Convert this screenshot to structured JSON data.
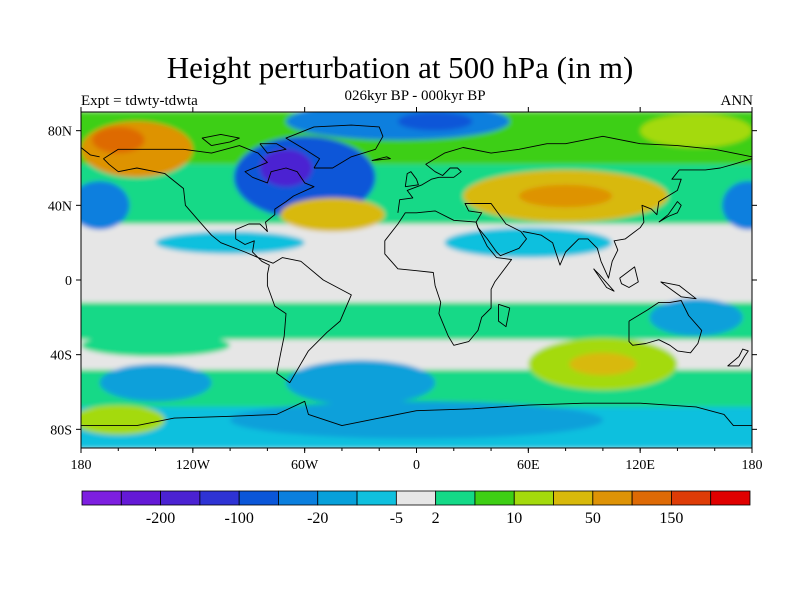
{
  "title": "Height perturbation at 500 hPa (in m)",
  "subtitle": "026kyr BP - 000kyr BP",
  "left_label": "Expt = tdwty-tdwta",
  "right_label": "ANN",
  "map": {
    "lon_range": [
      -180,
      180
    ],
    "lat_range": [
      -90,
      90
    ],
    "lon_ticks": [
      {
        "value": -180,
        "label": "180"
      },
      {
        "value": -120,
        "label": "120W"
      },
      {
        "value": -60,
        "label": "60W"
      },
      {
        "value": 0,
        "label": "0"
      },
      {
        "value": 60,
        "label": "60E"
      },
      {
        "value": 120,
        "label": "120E"
      },
      {
        "value": 180,
        "label": "180"
      }
    ],
    "lat_ticks": [
      {
        "value": 80,
        "label": "80N"
      },
      {
        "value": 40,
        "label": "40N"
      },
      {
        "value": 0,
        "label": "0"
      },
      {
        "value": -40,
        "label": "40S"
      },
      {
        "value": -80,
        "label": "80S"
      }
    ]
  },
  "colorbar": {
    "colors": [
      "#7d1fe0",
      "#6419d6",
      "#4b22d2",
      "#2e33d4",
      "#0a56d8",
      "#0a7fde",
      "#07a0da",
      "#0fc0de",
      "#e6e6e6",
      "#14d987",
      "#3ecf14",
      "#a4da0c",
      "#d8b90a",
      "#de9306",
      "#de6a05",
      "#de3c07",
      "#e00000"
    ],
    "labels": [
      {
        "after_box": 2,
        "text": "-200"
      },
      {
        "after_box": 4,
        "text": "-100"
      },
      {
        "after_box": 6,
        "text": "-20"
      },
      {
        "after_box": 8,
        "text": "-5"
      },
      {
        "after_box": 9,
        "text": "2"
      },
      {
        "after_box": 11,
        "text": "10"
      },
      {
        "after_box": 13,
        "text": "50"
      },
      {
        "after_box": 15,
        "text": "150"
      }
    ]
  },
  "field_blobs": [
    {
      "lon": -60,
      "lat": 55,
      "rx": 38,
      "ry": 22,
      "level": 4
    },
    {
      "lon": -70,
      "lat": 60,
      "rx": 14,
      "ry": 10,
      "level": 2
    },
    {
      "lon": -170,
      "lat": 40,
      "rx": 16,
      "ry": 13,
      "level": 5
    },
    {
      "lon": 178,
      "lat": 40,
      "rx": 14,
      "ry": 13,
      "level": 5
    },
    {
      "lon": -10,
      "lat": 85,
      "rx": 60,
      "ry": 10,
      "level": 5
    },
    {
      "lon": 10,
      "lat": 85,
      "rx": 20,
      "ry": 5,
      "level": 4
    },
    {
      "lon": -150,
      "lat": 70,
      "rx": 30,
      "ry": 15,
      "level": 13
    },
    {
      "lon": -160,
      "lat": 75,
      "rx": 14,
      "ry": 7,
      "level": 14
    },
    {
      "lon": -45,
      "lat": 35,
      "rx": 28,
      "ry": 9,
      "level": 12
    },
    {
      "lon": 80,
      "lat": 45,
      "rx": 55,
      "ry": 14,
      "level": 12
    },
    {
      "lon": 80,
      "lat": 45,
      "rx": 25,
      "ry": 6,
      "level": 13
    },
    {
      "lon": 150,
      "lat": 80,
      "rx": 30,
      "ry": 9,
      "level": 11
    },
    {
      "lon": 60,
      "lat": 20,
      "rx": 45,
      "ry": 8,
      "level": 7
    },
    {
      "lon": -100,
      "lat": 20,
      "rx": 40,
      "ry": 6,
      "level": 7
    },
    {
      "lon": -30,
      "lat": -55,
      "rx": 40,
      "ry": 12,
      "level": 6
    },
    {
      "lon": 100,
      "lat": -45,
      "rx": 40,
      "ry": 14,
      "level": 11
    },
    {
      "lon": 100,
      "lat": -45,
      "rx": 18,
      "ry": 6,
      "level": 12
    },
    {
      "lon": -140,
      "lat": -55,
      "rx": 30,
      "ry": 10,
      "level": 6
    },
    {
      "lon": 150,
      "lat": -20,
      "rx": 25,
      "ry": 10,
      "level": 6
    },
    {
      "lon": 0,
      "lat": -75,
      "rx": 100,
      "ry": 10,
      "level": 6
    },
    {
      "lon": -140,
      "lat": -35,
      "rx": 40,
      "ry": 6,
      "level": 9
    },
    {
      "lon": -160,
      "lat": -75,
      "rx": 25,
      "ry": 8,
      "level": 11
    }
  ],
  "field_bands": [
    {
      "lat_from": 90,
      "lat_to": 62,
      "level": 10
    },
    {
      "lat_from": 62,
      "lat_to": 30,
      "level": 9
    },
    {
      "lat_from": 30,
      "lat_to": 15,
      "level": 8
    },
    {
      "lat_from": 15,
      "lat_to": -12,
      "level": 8
    },
    {
      "lat_from": -12,
      "lat_to": -32,
      "level": 9
    },
    {
      "lat_from": -32,
      "lat_to": -48,
      "level": 8
    },
    {
      "lat_from": -48,
      "lat_to": -68,
      "level": 9
    },
    {
      "lat_from": -68,
      "lat_to": -90,
      "level": 7
    }
  ],
  "coastlines": [
    [
      [
        -168,
        65
      ],
      [
        -160,
        70
      ],
      [
        -140,
        70
      ],
      [
        -125,
        70
      ],
      [
        -110,
        68
      ],
      [
        -95,
        72
      ],
      [
        -85,
        68
      ],
      [
        -80,
        63
      ],
      [
        -92,
        58
      ],
      [
        -88,
        55
      ],
      [
        -80,
        52
      ],
      [
        -78,
        58
      ],
      [
        -70,
        60
      ],
      [
        -64,
        58
      ],
      [
        -60,
        52
      ],
      [
        -55,
        50
      ],
      [
        -66,
        45
      ],
      [
        -70,
        42
      ],
      [
        -76,
        38
      ],
      [
        -76,
        35
      ],
      [
        -81,
        31
      ],
      [
        -80,
        26
      ],
      [
        -82,
        28
      ],
      [
        -84,
        30
      ],
      [
        -90,
        30
      ],
      [
        -97,
        27
      ],
      [
        -97,
        22
      ],
      [
        -92,
        19
      ],
      [
        -87,
        21
      ],
      [
        -88,
        15
      ],
      [
        -83,
        10
      ],
      [
        -79,
        8
      ],
      [
        -80,
        3
      ],
      [
        -80,
        -3
      ],
      [
        -76,
        -14
      ],
      [
        -70,
        -18
      ],
      [
        -71,
        -30
      ],
      [
        -73,
        -40
      ],
      [
        -75,
        -50
      ],
      [
        -68,
        -55
      ],
      [
        -65,
        -50
      ],
      [
        -58,
        -38
      ],
      [
        -48,
        -28
      ],
      [
        -41,
        -22
      ],
      [
        -35,
        -8
      ],
      [
        -50,
        0
      ],
      [
        -62,
        10
      ],
      [
        -72,
        12
      ],
      [
        -77,
        9
      ],
      [
        -85,
        12
      ],
      [
        -92,
        15
      ],
      [
        -105,
        20
      ],
      [
        -110,
        24
      ],
      [
        -117,
        32
      ],
      [
        -124,
        40
      ],
      [
        -125,
        49
      ],
      [
        -135,
        57
      ],
      [
        -150,
        60
      ],
      [
        -160,
        58
      ],
      [
        -165,
        62
      ],
      [
        -168,
        65
      ]
    ],
    [
      [
        -55,
        60
      ],
      [
        -45,
        60
      ],
      [
        -35,
        66
      ],
      [
        -22,
        70
      ],
      [
        -18,
        77
      ],
      [
        -20,
        82
      ],
      [
        -35,
        83
      ],
      [
        -55,
        82
      ],
      [
        -65,
        78
      ],
      [
        -70,
        76
      ],
      [
        -60,
        70
      ],
      [
        -52,
        65
      ],
      [
        -55,
        60
      ]
    ],
    [
      [
        -17,
        21
      ],
      [
        -17,
        14
      ],
      [
        -10,
        6
      ],
      [
        0,
        5
      ],
      [
        9,
        4
      ],
      [
        10,
        -3
      ],
      [
        13,
        -12
      ],
      [
        12,
        -18
      ],
      [
        17,
        -30
      ],
      [
        20,
        -35
      ],
      [
        28,
        -33
      ],
      [
        33,
        -27
      ],
      [
        35,
        -20
      ],
      [
        40,
        -15
      ],
      [
        40,
        -5
      ],
      [
        42,
        -1
      ],
      [
        51,
        11
      ],
      [
        43,
        12
      ],
      [
        38,
        18
      ],
      [
        33,
        28
      ],
      [
        32,
        31
      ],
      [
        20,
        32
      ],
      [
        10,
        37
      ],
      [
        0,
        36
      ],
      [
        -6,
        36
      ],
      [
        -10,
        30
      ],
      [
        -17,
        21
      ]
    ],
    [
      [
        -10,
        36
      ],
      [
        -9,
        43
      ],
      [
        -2,
        44
      ],
      [
        -5,
        48
      ],
      [
        3,
        51
      ],
      [
        8,
        54
      ],
      [
        12,
        55
      ],
      [
        20,
        55
      ],
      [
        24,
        58
      ],
      [
        22,
        60
      ],
      [
        18,
        60
      ],
      [
        14,
        56
      ],
      [
        10,
        58
      ],
      [
        5,
        62
      ],
      [
        15,
        68
      ],
      [
        25,
        71
      ],
      [
        40,
        68
      ],
      [
        55,
        70
      ],
      [
        70,
        73
      ],
      [
        80,
        73
      ],
      [
        100,
        77
      ],
      [
        120,
        73
      ],
      [
        140,
        72
      ],
      [
        160,
        70
      ],
      [
        170,
        68
      ],
      [
        180,
        66
      ]
    ],
    [
      [
        32,
        31
      ],
      [
        35,
        36
      ],
      [
        28,
        37
      ],
      [
        26,
        41
      ],
      [
        40,
        41
      ],
      [
        48,
        30
      ],
      [
        56,
        26
      ],
      [
        59,
        22
      ],
      [
        55,
        17
      ],
      [
        45,
        13
      ],
      [
        43,
        15
      ],
      [
        38,
        22
      ],
      [
        33,
        28
      ],
      [
        32,
        31
      ]
    ],
    [
      [
        57,
        26
      ],
      [
        62,
        25
      ],
      [
        67,
        24
      ],
      [
        73,
        20
      ],
      [
        77,
        8
      ],
      [
        80,
        15
      ],
      [
        87,
        22
      ],
      [
        92,
        22
      ],
      [
        97,
        17
      ],
      [
        99,
        10
      ],
      [
        103,
        1
      ],
      [
        105,
        10
      ],
      [
        108,
        16
      ],
      [
        106,
        21
      ],
      [
        112,
        22
      ],
      [
        120,
        28
      ],
      [
        122,
        31
      ],
      [
        121,
        40
      ],
      [
        126,
        38
      ],
      [
        129,
        35
      ],
      [
        130,
        42
      ],
      [
        140,
        48
      ],
      [
        142,
        54
      ],
      [
        137,
        54
      ],
      [
        141,
        59
      ],
      [
        155,
        59
      ],
      [
        163,
        60
      ],
      [
        170,
        62
      ],
      [
        180,
        65
      ]
    ],
    [
      [
        114,
        -22
      ],
      [
        114,
        -33
      ],
      [
        116,
        -35
      ],
      [
        123,
        -34
      ],
      [
        130,
        -32
      ],
      [
        136,
        -35
      ],
      [
        140,
        -38
      ],
      [
        147,
        -39
      ],
      [
        151,
        -34
      ],
      [
        153,
        -27
      ],
      [
        146,
        -19
      ],
      [
        142,
        -11
      ],
      [
        136,
        -12
      ],
      [
        130,
        -12
      ],
      [
        124,
        -16
      ],
      [
        114,
        -22
      ]
    ],
    [
      [
        95,
        6
      ],
      [
        98,
        3
      ],
      [
        106,
        -6
      ],
      [
        102,
        -4
      ],
      [
        95,
        6
      ]
    ],
    [
      [
        109,
        1
      ],
      [
        117,
        7
      ],
      [
        119,
        -1
      ],
      [
        114,
        -4
      ],
      [
        110,
        -2
      ],
      [
        109,
        1
      ]
    ],
    [
      [
        131,
        -1
      ],
      [
        141,
        -3
      ],
      [
        150,
        -10
      ],
      [
        142,
        -9
      ],
      [
        131,
        -1
      ]
    ],
    [
      [
        130,
        31
      ],
      [
        135,
        34
      ],
      [
        140,
        36
      ],
      [
        142,
        40
      ],
      [
        140,
        42
      ],
      [
        135,
        35
      ],
      [
        130,
        31
      ]
    ],
    [
      [
        -6,
        50
      ],
      [
        1,
        51
      ],
      [
        0,
        54
      ],
      [
        -3,
        58
      ],
      [
        -5,
        57
      ],
      [
        -6,
        50
      ]
    ],
    [
      [
        -24,
        64
      ],
      [
        -14,
        65
      ],
      [
        -16,
        66
      ],
      [
        -24,
        64
      ]
    ],
    [
      [
        44,
        -13
      ],
      [
        50,
        -15
      ],
      [
        48,
        -25
      ],
      [
        44,
        -22
      ],
      [
        44,
        -13
      ]
    ],
    [
      [
        -180,
        -78
      ],
      [
        -150,
        -78
      ],
      [
        -130,
        -74
      ],
      [
        -100,
        -73
      ],
      [
        -75,
        -72
      ],
      [
        -60,
        -65
      ],
      [
        -58,
        -72
      ],
      [
        -40,
        -78
      ],
      [
        -20,
        -74
      ],
      [
        0,
        -70
      ],
      [
        30,
        -69
      ],
      [
        60,
        -67
      ],
      [
        90,
        -66
      ],
      [
        120,
        -66
      ],
      [
        150,
        -68
      ],
      [
        165,
        -72
      ],
      [
        170,
        -78
      ],
      [
        180,
        -78
      ]
    ],
    [
      [
        -180,
        71
      ],
      [
        -175,
        67
      ],
      [
        -170,
        66
      ]
    ],
    [
      [
        -84,
        73
      ],
      [
        -75,
        73
      ],
      [
        -70,
        70
      ],
      [
        -80,
        68
      ],
      [
        -84,
        73
      ]
    ],
    [
      [
        -110,
        72
      ],
      [
        -100,
        74
      ],
      [
        -95,
        76
      ],
      [
        -105,
        78
      ],
      [
        -115,
        76
      ],
      [
        -110,
        72
      ]
    ],
    [
      [
        173,
        -41
      ],
      [
        175,
        -37
      ],
      [
        178,
        -38
      ],
      [
        176,
        -41
      ],
      [
        173,
        -46
      ],
      [
        167,
        -46
      ],
      [
        173,
        -41
      ]
    ]
  ]
}
